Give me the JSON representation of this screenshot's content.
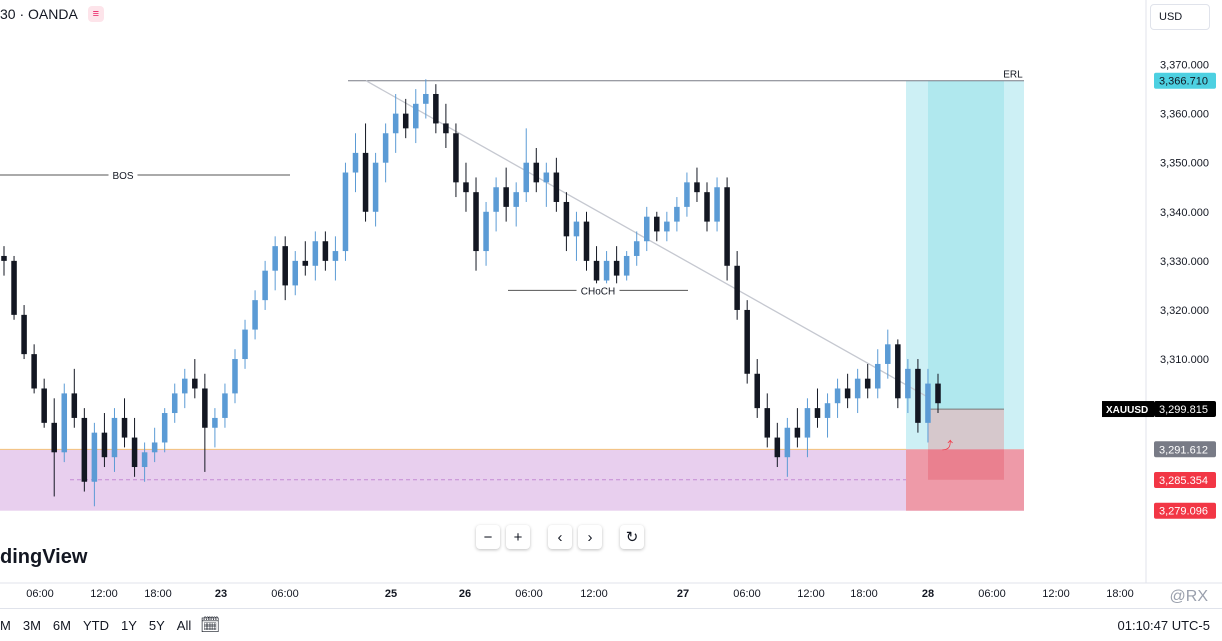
{
  "header": {
    "symbol_exchange": "30 · OANDA",
    "menu_icon": "equals-icon"
  },
  "currency": "USD",
  "colors": {
    "up": "#5b9bd5",
    "down": "#131722",
    "zone": "#e8cfee",
    "tp_light": "#cdf0f5",
    "tp_dark": "#b0e8ee",
    "sl": "#ee9aa8",
    "entry_zone": "#d6c8cc"
  },
  "chart_data": {
    "type": "candlestick",
    "symbol": "XAUUSD",
    "y_range": [
      3266,
      3375
    ],
    "y_ticks": [
      "3,370.000",
      "3,360.000",
      "3,350.000",
      "3,340.000",
      "3,330.000",
      "3,320.000",
      "3,310.000"
    ],
    "x_ticks": [
      "06:00",
      "12:00",
      "18:00",
      "23",
      "06:00",
      "25",
      "26",
      "06:00",
      "12:00",
      "27",
      "06:00",
      "12:00",
      "18:00",
      "28",
      "06:00",
      "12:00",
      "18:00"
    ],
    "price_labels": [
      {
        "text": "3,366.710",
        "value": 3366.71,
        "color": "#4dd0e1",
        "dark_text": true
      },
      {
        "text": "XAUUSD",
        "value": 3299.815,
        "color": "#000000",
        "dark_text": false
      },
      {
        "text": "3,299.815",
        "value": 3299.815,
        "color": "#000000",
        "dark_text": false
      },
      {
        "text": "3,291.612",
        "value": 3291.612,
        "color": "#787b86",
        "dark_text": false
      },
      {
        "text": "3,285.354",
        "value": 3285.354,
        "color": "#f23645",
        "dark_text": false
      },
      {
        "text": "3,279.096",
        "value": 3279.096,
        "color": "#f23645",
        "dark_text": false
      }
    ],
    "annotations": [
      {
        "text": "BOS",
        "value": 3347.5
      },
      {
        "text": "CHoCH",
        "value": 3324
      },
      {
        "text": "ERL",
        "value": 3366.7
      }
    ],
    "levels": {
      "zone_top": 3291.6,
      "zone_bottom": 3279.1,
      "zone_mid": 3285.4,
      "entry": 3299.8,
      "target": 3366.7,
      "high": 3366.7
    },
    "candles": [
      [
        3331,
        3333,
        3327,
        3330
      ],
      [
        3330,
        3331,
        3318,
        3319
      ],
      [
        3319,
        3321,
        3310,
        3311
      ],
      [
        3311,
        3313,
        3303,
        3304
      ],
      [
        3304,
        3306,
        3296,
        3297
      ],
      [
        3297,
        3302,
        3282,
        3291
      ],
      [
        3291,
        3305,
        3289,
        3303
      ],
      [
        3303,
        3308,
        3296,
        3298
      ],
      [
        3298,
        3300,
        3283,
        3285
      ],
      [
        3285,
        3297,
        3280,
        3295
      ],
      [
        3295,
        3299,
        3288,
        3290
      ],
      [
        3290,
        3300,
        3287,
        3298
      ],
      [
        3298,
        3302,
        3292,
        3294
      ],
      [
        3294,
        3298,
        3286,
        3288
      ],
      [
        3288,
        3293,
        3285,
        3291
      ],
      [
        3291,
        3296,
        3289,
        3293
      ],
      [
        3293,
        3300,
        3291,
        3299
      ],
      [
        3299,
        3305,
        3297,
        3303
      ],
      [
        3303,
        3308,
        3300,
        3306
      ],
      [
        3306,
        3310,
        3302,
        3304
      ],
      [
        3304,
        3307,
        3287,
        3296
      ],
      [
        3296,
        3300,
        3292,
        3298
      ],
      [
        3298,
        3305,
        3296,
        3303
      ],
      [
        3303,
        3312,
        3301,
        3310
      ],
      [
        3310,
        3318,
        3308,
        3316
      ],
      [
        3316,
        3324,
        3314,
        3322
      ],
      [
        3322,
        3330,
        3320,
        3328
      ],
      [
        3328,
        3335,
        3324,
        3333
      ],
      [
        3333,
        3335,
        3322,
        3325
      ],
      [
        3325,
        3332,
        3323,
        3330
      ],
      [
        3330,
        3334,
        3327,
        3329
      ],
      [
        3329,
        3336,
        3326,
        3334
      ],
      [
        3334,
        3336,
        3328,
        3330
      ],
      [
        3330,
        3335,
        3326,
        3332
      ],
      [
        3332,
        3350,
        3330,
        3348
      ],
      [
        3348,
        3356,
        3344,
        3352
      ],
      [
        3352,
        3358,
        3338,
        3340
      ],
      [
        3340,
        3352,
        3337,
        3350
      ],
      [
        3350,
        3358,
        3346,
        3356
      ],
      [
        3356,
        3364,
        3352,
        3360
      ],
      [
        3360,
        3363,
        3355,
        3357
      ],
      [
        3357,
        3365,
        3354,
        3362
      ],
      [
        3362,
        3367,
        3359,
        3364
      ],
      [
        3364,
        3366,
        3356,
        3358
      ],
      [
        3358,
        3362,
        3353,
        3356
      ],
      [
        3356,
        3358,
        3343,
        3346
      ],
      [
        3346,
        3350,
        3340,
        3344
      ],
      [
        3344,
        3347,
        3328,
        3332
      ],
      [
        3332,
        3342,
        3329,
        3340
      ],
      [
        3340,
        3347,
        3336,
        3345
      ],
      [
        3345,
        3349,
        3338,
        3341
      ],
      [
        3341,
        3346,
        3337,
        3344
      ],
      [
        3344,
        3357,
        3342,
        3350
      ],
      [
        3350,
        3353,
        3344,
        3346
      ],
      [
        3346,
        3350,
        3341,
        3348
      ],
      [
        3348,
        3351,
        3340,
        3342
      ],
      [
        3342,
        3344,
        3332,
        3335
      ],
      [
        3335,
        3340,
        3330,
        3338
      ],
      [
        3338,
        3340,
        3328,
        3330
      ],
      [
        3330,
        3333,
        3324,
        3326
      ],
      [
        3326,
        3332,
        3324,
        3330
      ],
      [
        3330,
        3333,
        3325,
        3327
      ],
      [
        3327,
        3332,
        3326,
        3331
      ],
      [
        3331,
        3336,
        3329,
        3334
      ],
      [
        3334,
        3341,
        3332,
        3339
      ],
      [
        3339,
        3340,
        3334,
        3336
      ],
      [
        3336,
        3340,
        3334,
        3338
      ],
      [
        3338,
        3343,
        3336,
        3341
      ],
      [
        3341,
        3348,
        3339,
        3346
      ],
      [
        3346,
        3349,
        3342,
        3344
      ],
      [
        3344,
        3346,
        3336,
        3338
      ],
      [
        3338,
        3347,
        3336,
        3345
      ],
      [
        3345,
        3347,
        3326,
        3329
      ],
      [
        3329,
        3332,
        3318,
        3320
      ],
      [
        3320,
        3322,
        3305,
        3307
      ],
      [
        3307,
        3310,
        3298,
        3300
      ],
      [
        3300,
        3303,
        3292,
        3294
      ],
      [
        3294,
        3297,
        3288,
        3290
      ],
      [
        3290,
        3298,
        3286,
        3296
      ],
      [
        3296,
        3300,
        3292,
        3294
      ],
      [
        3294,
        3302,
        3290,
        3300
      ],
      [
        3300,
        3304,
        3296,
        3298
      ],
      [
        3298,
        3303,
        3294,
        3301
      ],
      [
        3301,
        3306,
        3298,
        3304
      ],
      [
        3304,
        3307,
        3300,
        3302
      ],
      [
        3302,
        3308,
        3299,
        3306
      ],
      [
        3306,
        3309,
        3302,
        3304
      ],
      [
        3304,
        3312,
        3302,
        3309
      ],
      [
        3309,
        3316,
        3306,
        3313
      ],
      [
        3313,
        3314,
        3300,
        3302
      ],
      [
        3302,
        3310,
        3299,
        3308
      ],
      [
        3308,
        3310,
        3295,
        3297
      ],
      [
        3297,
        3308,
        3293,
        3305
      ],
      [
        3305,
        3307,
        3299,
        3301
      ]
    ]
  },
  "toolbar": {
    "minus": "−",
    "plus": "+",
    "prev": "‹",
    "next": "›",
    "reset": "↻"
  },
  "bottom": {
    "ranges": [
      "M",
      "3M",
      "6M",
      "YTD",
      "1Y",
      "5Y",
      "All"
    ],
    "clock": "01:10:47 UTC-5"
  },
  "branding": "dingView",
  "watermark": "@RX"
}
